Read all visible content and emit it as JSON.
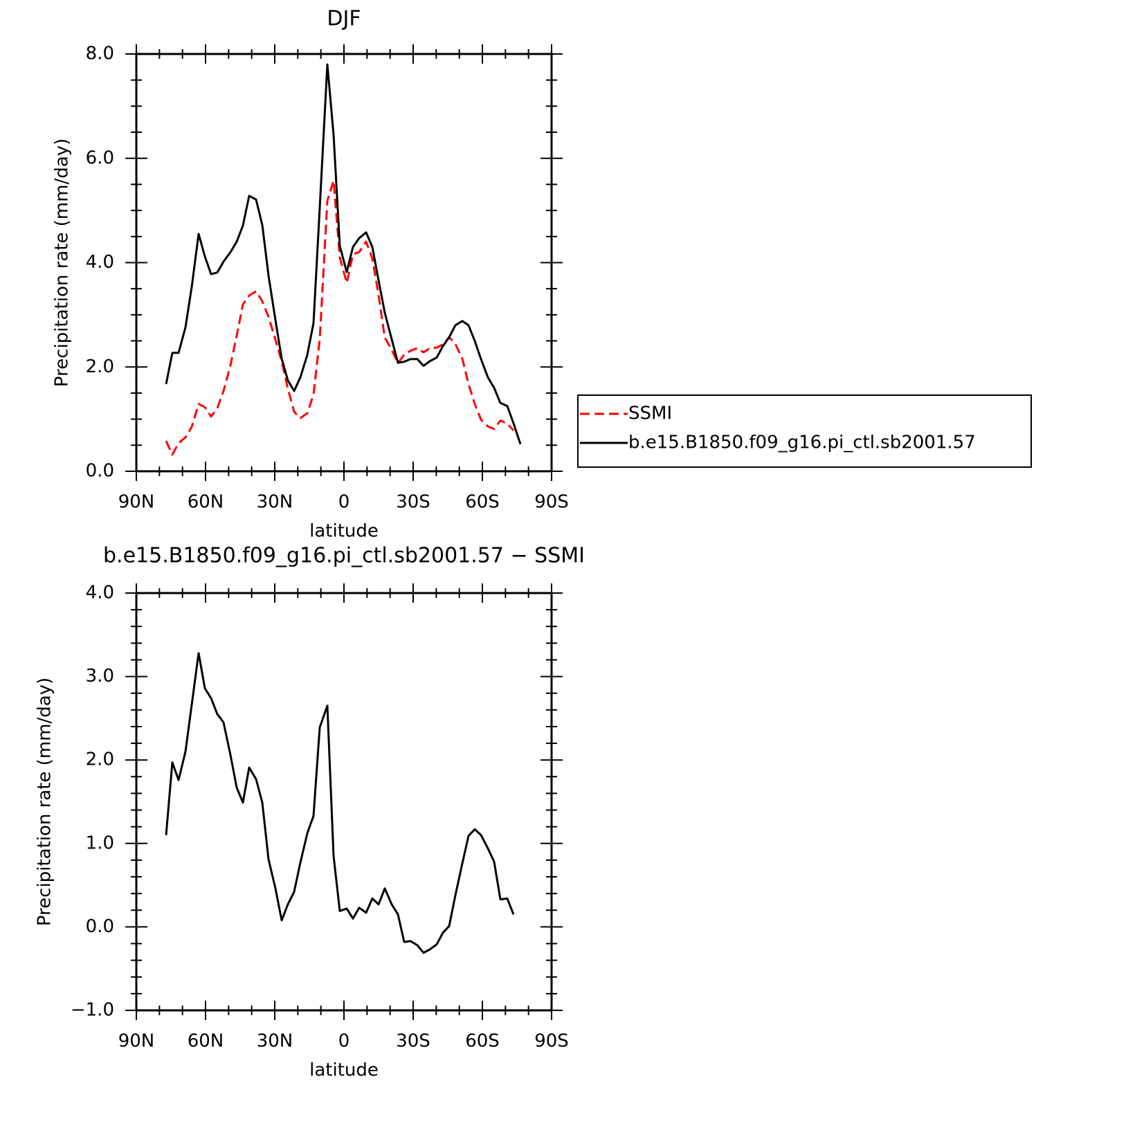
{
  "chart_data": [
    {
      "type": "line",
      "title": "DJF",
      "x_label": "latitude",
      "y_label": "Precipitation rate (mm/day)",
      "x": [
        77.1,
        74.4,
        71.7,
        68.7,
        66.0,
        63.0,
        60.3,
        57.6,
        54.9,
        52.2,
        49.2,
        46.5,
        43.8,
        41.1,
        38.1,
        35.4,
        32.7,
        29.7,
        27.0,
        24.3,
        21.6,
        18.9,
        15.9,
        13.2,
        10.5,
        7.2,
        4.5,
        1.8,
        -1.2,
        -3.9,
        -6.6,
        -9.6,
        -12.3,
        -15.0,
        -17.7,
        -20.7,
        -23.4,
        -26.1,
        -28.8,
        -31.8,
        -34.5,
        -37.2,
        -40.2,
        -42.9,
        -45.6,
        -48.3,
        -51.3,
        -54.0,
        -56.7,
        -59.4,
        -62.4,
        -65.1,
        -67.8,
        -70.8,
        -73.5,
        -76.5
      ],
      "series": [
        {
          "name": "SSMI",
          "color": "#ff0000",
          "dash": true,
          "values": [
            0.58,
            0.32,
            0.54,
            0.65,
            0.85,
            1.29,
            1.23,
            1.05,
            1.21,
            1.54,
            2.03,
            2.6,
            3.2,
            3.37,
            3.45,
            3.26,
            2.96,
            2.52,
            2.11,
            1.58,
            1.14,
            1.02,
            1.11,
            1.47,
            2.53,
            5.19,
            5.57,
            4.1,
            3.61,
            4.16,
            4.2,
            4.4,
            4.08,
            3.38,
            2.56,
            2.33,
            2.07,
            2.24,
            2.31,
            2.36,
            2.28,
            2.36,
            2.37,
            2.43,
            2.57,
            2.44,
            2.16,
            1.67,
            1.29,
            0.99,
            0.86,
            0.81,
            0.97,
            0.92,
            0.78,
            null
          ]
        },
        {
          "name": "b.e15.B1850.f09_g16.pi_ctl.sb2001.57",
          "color": "#000000",
          "dash": false,
          "values": [
            1.67,
            2.27,
            2.27,
            2.76,
            3.53,
            4.55,
            4.12,
            3.78,
            3.81,
            4.02,
            4.2,
            4.4,
            4.71,
            5.28,
            5.21,
            4.72,
            3.75,
            2.9,
            2.16,
            1.74,
            1.54,
            1.8,
            2.23,
            2.84,
            5.05,
            7.8,
            6.45,
            4.32,
            3.82,
            4.3,
            4.47,
            4.58,
            4.3,
            3.66,
            3.04,
            2.53,
            2.08,
            2.1,
            2.15,
            2.15,
            2.02,
            2.11,
            2.18,
            2.4,
            2.57,
            2.8,
            2.88,
            2.8,
            2.5,
            2.15,
            1.8,
            1.6,
            1.31,
            1.25,
            0.92,
            0.52
          ]
        }
      ],
      "xlim": [
        90,
        -90
      ],
      "xticks": [
        {
          "value": 90,
          "label": "90N"
        },
        {
          "value": 60,
          "label": "60N"
        },
        {
          "value": 30,
          "label": "30N"
        },
        0,
        {
          "value": -30,
          "label": "30S"
        },
        {
          "value": -60,
          "label": "60S"
        },
        {
          "value": -90,
          "label": "90S"
        }
      ],
      "xminorticks": [
        80,
        70,
        50,
        40,
        20,
        10,
        -10,
        -20,
        -40,
        -50,
        -70,
        -80
      ],
      "ylim": [
        0,
        8
      ],
      "yticks": [
        {
          "value": 0,
          "label": "0.0"
        },
        {
          "value": 2,
          "label": "2.0"
        },
        {
          "value": 4,
          "label": "4.0"
        },
        {
          "value": 6,
          "label": "6.0"
        },
        {
          "value": 8,
          "label": "8.0"
        }
      ],
      "yminorticks": [
        0.5,
        1,
        1.5,
        2.5,
        3,
        3.5,
        4.5,
        5,
        5.5,
        6.5,
        7,
        7.5
      ],
      "legend": "outside-right"
    },
    {
      "type": "line",
      "title": "b.e15.B1850.f09_g16.pi_ctl.sb2001.57 − SSMI",
      "x_label": "latitude",
      "y_label": "Precipitation rate (mm/day)",
      "x": [
        77.1,
        74.4,
        71.7,
        68.7,
        66.0,
        63.0,
        60.3,
        57.6,
        54.9,
        52.2,
        49.2,
        46.5,
        43.8,
        41.1,
        38.1,
        35.4,
        32.7,
        29.7,
        27.0,
        24.3,
        21.6,
        18.9,
        15.9,
        13.2,
        10.5,
        7.2,
        4.5,
        1.8,
        -1.2,
        -3.9,
        -6.6,
        -9.6,
        -12.3,
        -15.0,
        -17.7,
        -20.7,
        -23.4,
        -26.1,
        -28.8,
        -31.8,
        -34.5,
        -37.2,
        -40.2,
        -42.9,
        -45.6,
        -48.3,
        -51.3,
        -54.0,
        -56.7,
        -59.4,
        -62.4,
        -65.1,
        -67.8,
        -70.8,
        -73.5,
        -76.5
      ],
      "series": [
        {
          "color": "#000000",
          "dash": false,
          "values": [
            1.1,
            1.97,
            1.76,
            2.1,
            2.66,
            3.28,
            2.86,
            2.74,
            2.55,
            2.45,
            2.06,
            1.67,
            1.49,
            1.91,
            1.77,
            1.49,
            0.81,
            0.46,
            0.08,
            0.27,
            0.42,
            0.77,
            1.12,
            1.33,
            2.39,
            2.65,
            0.85,
            0.19,
            0.22,
            0.1,
            0.23,
            0.17,
            0.34,
            0.27,
            0.46,
            0.27,
            0.15,
            -0.18,
            -0.17,
            -0.22,
            -0.31,
            -0.27,
            -0.21,
            -0.07,
            0.01,
            0.38,
            0.76,
            1.09,
            1.17,
            1.1,
            0.94,
            0.78,
            0.33,
            0.34,
            0.15,
            null
          ]
        }
      ],
      "xlim": [
        90,
        -90
      ],
      "xticks": [
        {
          "value": 90,
          "label": "90N"
        },
        {
          "value": 60,
          "label": "60N"
        },
        {
          "value": 30,
          "label": "30N"
        },
        0,
        {
          "value": -30,
          "label": "30S"
        },
        {
          "value": -60,
          "label": "60S"
        },
        {
          "value": -90,
          "label": "90S"
        }
      ],
      "xminorticks": [
        80,
        70,
        50,
        40,
        20,
        10,
        -10,
        -20,
        -40,
        -50,
        -70,
        -80
      ],
      "ylim": [
        -1,
        4
      ],
      "yticks": [
        {
          "value": -1,
          "label": "−1.0"
        },
        {
          "value": 0,
          "label": "0.0"
        },
        {
          "value": 1,
          "label": "1.0"
        },
        {
          "value": 2,
          "label": "2.0"
        },
        {
          "value": 3,
          "label": "3.0"
        },
        {
          "value": 4,
          "label": "4.0"
        }
      ],
      "yminorticks": [
        -0.8,
        -0.6,
        -0.4,
        -0.2,
        0.2,
        0.4,
        0.6,
        0.8,
        1.2,
        1.4,
        1.6,
        1.8,
        2.2,
        2.4,
        2.6,
        2.8,
        3.2,
        3.4,
        3.6,
        3.8
      ]
    }
  ]
}
